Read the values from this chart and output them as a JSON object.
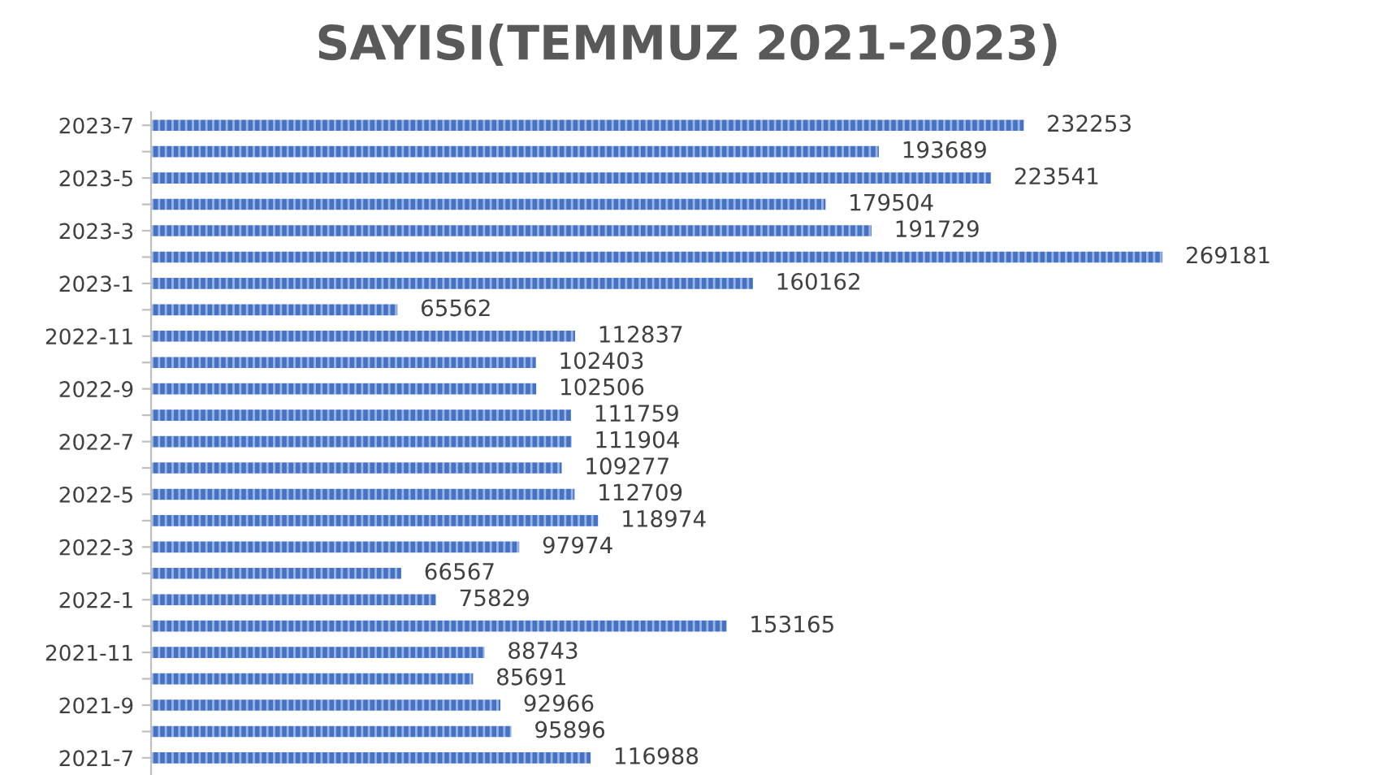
{
  "chart_data": {
    "type": "bar",
    "orientation": "horizontal",
    "title": "SAYISI(TEMMUZ 2021-2023)",
    "categories": [
      "2023-7",
      null,
      "2023-5",
      null,
      "2023-3",
      null,
      "2023-1",
      null,
      "2022-11",
      null,
      "2022-9",
      null,
      "2022-7",
      null,
      "2022-5",
      null,
      "2022-3",
      null,
      "2022-1",
      null,
      "2021-11",
      null,
      "2021-9",
      null,
      "2021-7"
    ],
    "values": [
      232253,
      193689,
      223541,
      179504,
      191729,
      269181,
      160162,
      65562,
      112837,
      102403,
      102506,
      111759,
      111904,
      109277,
      112709,
      118974,
      97974,
      66567,
      75829,
      153165,
      88743,
      85691,
      92966,
      95896,
      116988
    ],
    "color": "#4472c4",
    "data_labels": true,
    "tick_labels": "y",
    "grid": false,
    "legend": false
  }
}
